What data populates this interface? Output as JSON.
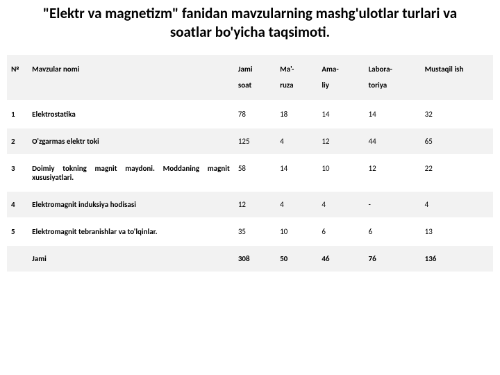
{
  "title": "\"Elektr va magnetizm\" fanidan mavzularning mashg'ulotlar turlari  va soatlar bo'yicha taqsimoti.",
  "header_row_bg": "#f2f2f2",
  "odd_row_bg": "#f2f2f2",
  "even_row_bg": "#ffffff",
  "columns": [
    {
      "key": "num",
      "line1": "№",
      "line2": "",
      "class": "col-num"
    },
    {
      "key": "name",
      "line1": "Mavzular nomi",
      "line2": "",
      "class": "col-name"
    },
    {
      "key": "jami",
      "line1": "Jami",
      "line2": "soat",
      "class": "col-jami"
    },
    {
      "key": "ma",
      "line1": "Ma'-",
      "line2": "ruza",
      "class": "col-ma"
    },
    {
      "key": "ama",
      "line1": "Ama-",
      "line2": "liy",
      "class": "col-ama"
    },
    {
      "key": "lab",
      "line1": "Labora-",
      "line2": "toriya",
      "class": "col-lab"
    },
    {
      "key": "must",
      "line1": "Mustaqil ish",
      "line2": "",
      "class": "col-must"
    }
  ],
  "rows": [
    {
      "num": "1",
      "name": "Elektrostatika",
      "jami": "78",
      "ma": "18",
      "ama": "14",
      "lab": "14",
      "must": "32",
      "bold": false
    },
    {
      "num": "2",
      "name": "O'zgarmas elektr toki",
      "jami": "125",
      "ma": "4",
      "ama": "12",
      "lab": "44",
      "must": "65",
      "bold": false
    },
    {
      "num": "3",
      "name": "Doimiy tokning magnit maydoni. Moddaning magnit xususiyatlari.",
      "jami": "58",
      "ma": "14",
      "ama": "10",
      "lab": "12",
      "must": "22",
      "bold": false
    },
    {
      "num": "4",
      "name": "Elektromagnit induksiya hodisasi",
      "jami": "12",
      "ma": "4",
      "ama": "4",
      "lab": "-",
      "must": "4",
      "bold": false
    },
    {
      "num": "5",
      "name": "Elektromagnit tebranishlar va to'lqinlar.",
      "jami": "35",
      "ma": "10",
      "ama": "6",
      "lab": "6",
      "must": "13",
      "bold": false
    },
    {
      "num": "",
      "name": "Jami",
      "jami": "308",
      "ma": "50",
      "ama": "46",
      "lab": "76",
      "must": "136",
      "bold": true
    }
  ]
}
